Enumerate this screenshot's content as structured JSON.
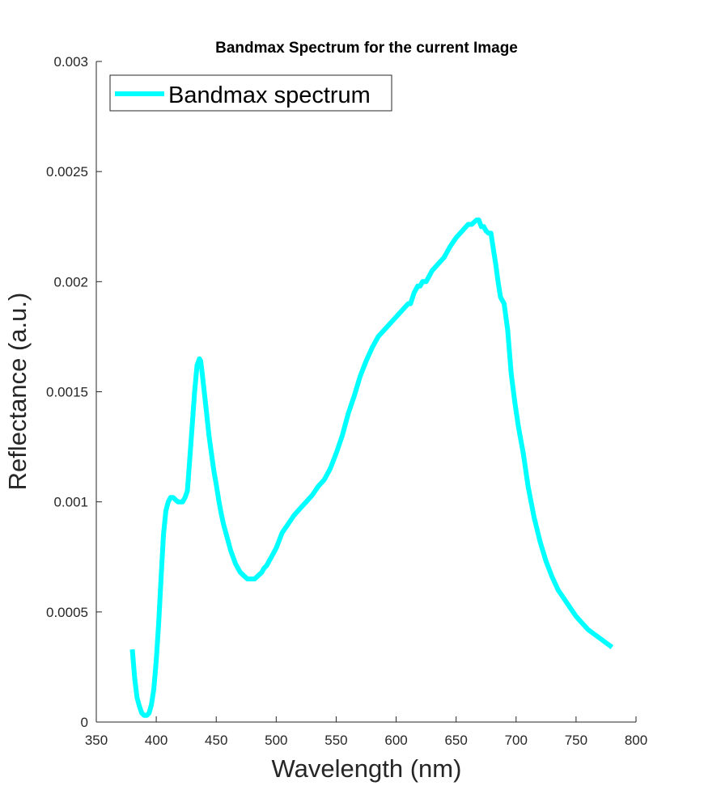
{
  "chart_data": {
    "type": "line",
    "title": "Bandmax Spectrum for the current Image",
    "xlabel": "Wavelength (nm)",
    "ylabel": "Reflectance (a.u.)",
    "xlim": [
      350,
      800
    ],
    "ylim": [
      0,
      0.003
    ],
    "xticks": [
      350,
      400,
      450,
      500,
      550,
      600,
      650,
      700,
      750,
      800
    ],
    "xtick_labels": [
      "350",
      "400",
      "450",
      "500",
      "550",
      "600",
      "650",
      "700",
      "750",
      "800"
    ],
    "yticks": [
      0,
      0.0005,
      0.001,
      0.0015,
      0.002,
      0.0025,
      0.003
    ],
    "ytick_labels": [
      "0",
      "0.0005",
      "0.001",
      "0.0015",
      "0.002",
      "0.0025",
      "0.003"
    ],
    "grid": false,
    "legend_position": "top-left",
    "series": [
      {
        "name": "Bandmax spectrum",
        "color": "#00FFFF",
        "x": [
          380,
          382,
          384,
          386,
          388,
          390,
          392,
          394,
          396,
          398,
          400,
          402,
          404,
          406,
          408,
          410,
          412,
          414,
          416,
          418,
          420,
          422,
          424,
          426,
          428,
          430,
          432,
          434,
          436,
          437,
          438,
          440,
          442,
          444,
          446,
          448,
          450,
          452,
          454,
          456,
          458,
          460,
          462,
          464,
          466,
          468,
          470,
          472,
          474,
          476,
          478,
          480,
          482,
          484,
          486,
          488,
          490,
          492,
          494,
          496,
          498,
          500,
          505,
          510,
          515,
          520,
          525,
          530,
          535,
          540,
          545,
          550,
          555,
          560,
          565,
          570,
          575,
          580,
          585,
          590,
          595,
          600,
          605,
          610,
          612,
          615,
          618,
          620,
          622,
          625,
          628,
          630,
          635,
          640,
          645,
          650,
          655,
          660,
          663,
          665,
          667,
          669,
          671,
          673,
          675,
          677,
          679,
          681,
          683,
          685,
          687,
          690,
          693,
          696,
          699,
          702,
          706,
          710,
          715,
          720,
          725,
          730,
          735,
          740,
          745,
          750,
          755,
          760,
          765,
          770,
          775,
          780
        ],
        "values": [
          0.00033,
          0.0002,
          0.00011,
          7e-05,
          4e-05,
          3e-05,
          3e-05,
          4e-05,
          8e-05,
          0.00015,
          0.00028,
          0.00045,
          0.00065,
          0.00085,
          0.00096,
          0.001,
          0.00102,
          0.00102,
          0.00101,
          0.001,
          0.001,
          0.001,
          0.00102,
          0.00105,
          0.0012,
          0.00135,
          0.0015,
          0.00162,
          0.00165,
          0.00164,
          0.0016,
          0.0015,
          0.0014,
          0.0013,
          0.00122,
          0.00114,
          0.00108,
          0.00101,
          0.00095,
          0.0009,
          0.00086,
          0.00082,
          0.00078,
          0.00075,
          0.00072,
          0.0007,
          0.00068,
          0.00067,
          0.00066,
          0.00065,
          0.00065,
          0.00065,
          0.00065,
          0.00066,
          0.00067,
          0.00068,
          0.0007,
          0.00071,
          0.00073,
          0.00075,
          0.00077,
          0.00079,
          0.00086,
          0.0009,
          0.00094,
          0.00097,
          0.001,
          0.00103,
          0.00107,
          0.0011,
          0.00115,
          0.00122,
          0.0013,
          0.0014,
          0.00148,
          0.00157,
          0.00164,
          0.0017,
          0.00175,
          0.00178,
          0.00181,
          0.00184,
          0.00187,
          0.0019,
          0.0019,
          0.00195,
          0.00198,
          0.00198,
          0.002,
          0.002,
          0.00203,
          0.00205,
          0.00208,
          0.00211,
          0.00216,
          0.0022,
          0.00223,
          0.00226,
          0.00226,
          0.00227,
          0.00228,
          0.00228,
          0.00225,
          0.00225,
          0.00223,
          0.00222,
          0.00222,
          0.00215,
          0.00208,
          0.002,
          0.00193,
          0.0019,
          0.00178,
          0.00158,
          0.00145,
          0.00134,
          0.00122,
          0.00107,
          0.00093,
          0.00082,
          0.00073,
          0.00066,
          0.0006,
          0.00056,
          0.00052,
          0.00048,
          0.00045,
          0.00042,
          0.0004,
          0.00038,
          0.00036,
          0.00034
        ]
      }
    ]
  }
}
